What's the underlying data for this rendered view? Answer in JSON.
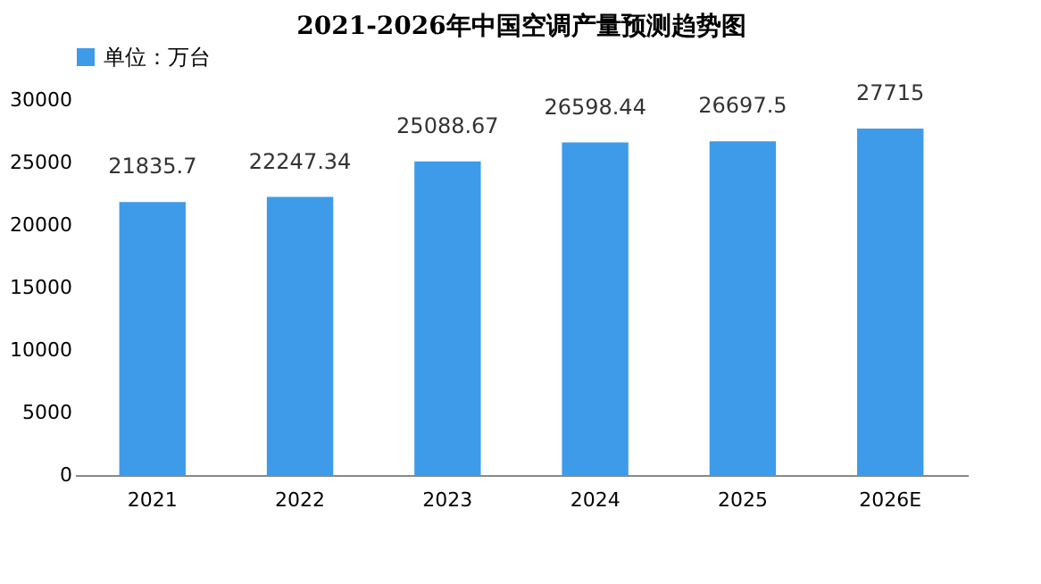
{
  "chart_data": {
    "type": "bar",
    "title": "2021-2026年中国空调产量预测趋势图",
    "categories": [
      "2021",
      "2022",
      "2023",
      "2024",
      "2025",
      "2026E"
    ],
    "series": [
      {
        "name": "单位：万台",
        "color": "#3d9be9",
        "values": [
          21835.7,
          22247.34,
          25088.67,
          26598.44,
          26697.5,
          27715
        ]
      }
    ],
    "ylim": [
      0,
      30000
    ],
    "yticks": [
      0,
      5000,
      10000,
      15000,
      20000,
      25000,
      30000
    ],
    "data_labels": true,
    "legend": "top",
    "grid": false
  }
}
